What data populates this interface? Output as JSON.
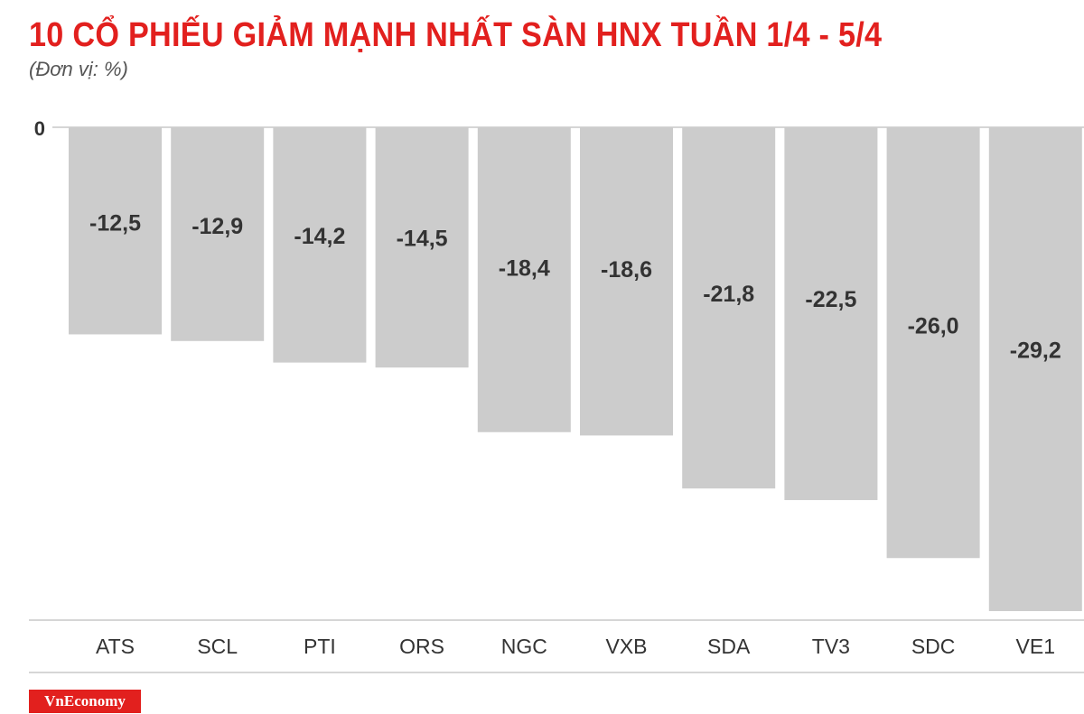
{
  "title": "10 CỔ PHIẾU GIẢM MẠNH NHẤT SÀN HNX TUẦN 1/4 - 5/4",
  "subtitle": "(Đơn vị: %)",
  "brand": "VnEconomy",
  "colors": {
    "title": "#e2201e",
    "bar": "#cccccc",
    "label": "#333333",
    "axis": "#d6d6d6",
    "brand_bg": "#e2201e"
  },
  "chart_data": {
    "type": "bar",
    "title": "10 CỔ PHIẾU GIẢM MẠNH NHẤT SÀN HNX TUẦN 1/4 - 5/4",
    "subtitle": "(Đơn vị: %)",
    "categories": [
      "ATS",
      "SCL",
      "PTI",
      "ORS",
      "NGC",
      "VXB",
      "SDA",
      "TV3",
      "SDC",
      "VE1"
    ],
    "values": [
      -12.5,
      -12.9,
      -14.2,
      -14.5,
      -18.4,
      -18.6,
      -21.8,
      -22.5,
      -26.0,
      -29.2
    ],
    "value_labels": [
      "-12,5",
      "-12,9",
      "-14,2",
      "-14,5",
      "-18,4",
      "-18,6",
      "-21,8",
      "-22,5",
      "-26,0",
      "-29,2"
    ],
    "y_tick_labels": [
      "0"
    ],
    "ylim": [
      -29.2,
      0
    ],
    "grid": false,
    "legend": "none"
  }
}
